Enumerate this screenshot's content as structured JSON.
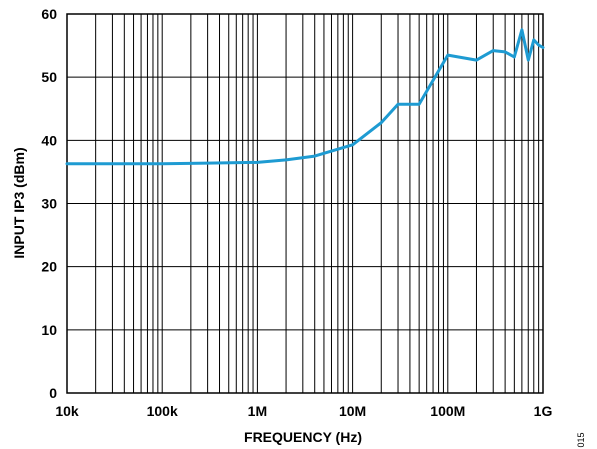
{
  "chart_data": {
    "type": "line",
    "title": "",
    "xlabel": "FREQUENCY (Hz)",
    "ylabel": "INPUT IP3 (dBm)",
    "x_scale": "log",
    "xlim": [
      10000,
      1000000000
    ],
    "ylim": [
      0,
      60
    ],
    "x_ticks": [
      10000,
      100000,
      1000000,
      10000000,
      100000000,
      1000000000
    ],
    "x_tick_labels": [
      "10k",
      "100k",
      "1M",
      "10M",
      "100M",
      "1G"
    ],
    "y_ticks": [
      0,
      10,
      20,
      30,
      40,
      50,
      60
    ],
    "y_tick_labels": [
      "0",
      "10",
      "20",
      "30",
      "40",
      "50",
      "60"
    ],
    "grid": true,
    "legend": "none",
    "series": [
      {
        "color": "#1e9bd2",
        "x": [
          10000,
          30000,
          100000,
          300000,
          1000000,
          2000000,
          4000000,
          6000000,
          10000000,
          20000000,
          30000000,
          50000000,
          100000000,
          200000000,
          300000000,
          400000000,
          500000000,
          600000000,
          700000000,
          800000000,
          900000000,
          1000000000
        ],
        "y": [
          36.3,
          36.3,
          36.3,
          36.4,
          36.5,
          36.9,
          37.5,
          38.3,
          39.3,
          42.8,
          45.7,
          45.7,
          53.5,
          52.7,
          54.2,
          54,
          53.2,
          57.5,
          52.7,
          55.9,
          55.1,
          54.7
        ]
      }
    ]
  },
  "figure_id": "015"
}
